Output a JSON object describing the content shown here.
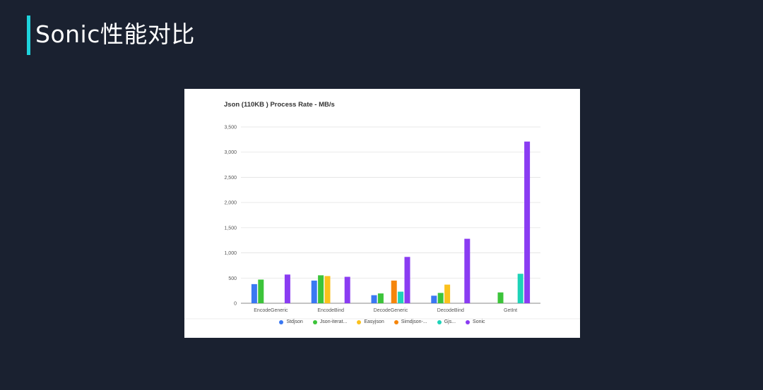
{
  "slide": {
    "title": "Sonic性能对比"
  },
  "chart_data": {
    "type": "bar",
    "title": "Json (110KB ) Process Rate - MB/s",
    "xlabel": "",
    "ylabel": "",
    "ylim": [
      0,
      3500
    ],
    "yticks": [
      "0",
      "500",
      "1,000",
      "1,500",
      "2,000",
      "2,500",
      "3,000",
      "3,500"
    ],
    "ytick_values": [
      0,
      500,
      1000,
      1500,
      2000,
      2500,
      3000,
      3500
    ],
    "grid": true,
    "legend_position": "bottom",
    "categories": [
      "EncodeGeneric",
      "EncodeBind",
      "DecodeGeneric",
      "DecodeBind",
      "GetInt"
    ],
    "series": [
      {
        "name": "Stdjson",
        "color": "#3a78f2",
        "values": [
          380,
          450,
          160,
          150,
          null
        ]
      },
      {
        "name": "Json-iterat...",
        "color": "#3cc43a",
        "values": [
          470,
          555,
          195,
          205,
          215
        ]
      },
      {
        "name": "Easyjson",
        "color": "#fbc11d",
        "values": [
          null,
          540,
          null,
          370,
          null
        ]
      },
      {
        "name": "Simdjson-...",
        "color": "#f5850b",
        "values": [
          null,
          null,
          450,
          null,
          null
        ]
      },
      {
        "name": "Gjs...",
        "color": "#1ed3b8",
        "values": [
          null,
          null,
          230,
          null,
          585
        ]
      },
      {
        "name": "Sonic",
        "color": "#8a3cf2",
        "values": [
          570,
          525,
          920,
          1280,
          3210
        ]
      }
    ]
  }
}
